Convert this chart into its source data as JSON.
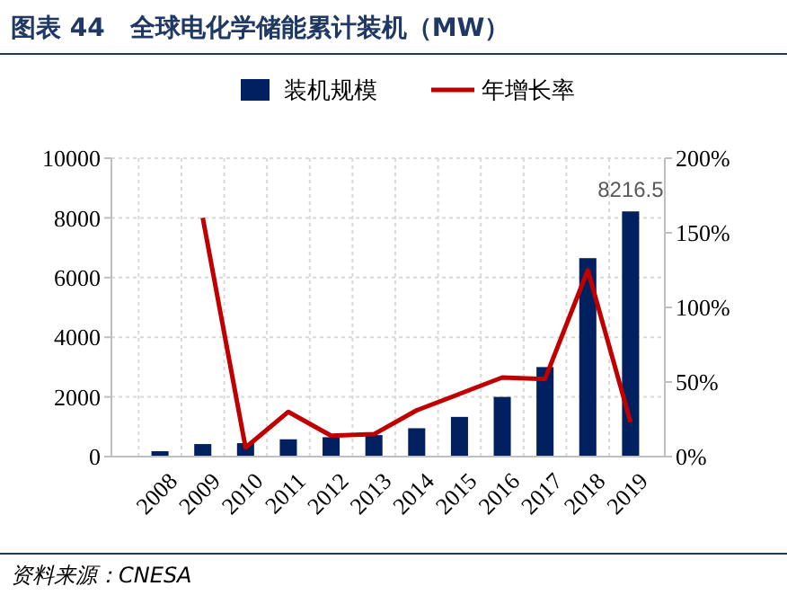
{
  "chart_data": {
    "type": "bar",
    "title": "图表 44　全球电化学储能累计装机（MW）",
    "categories": [
      "2008",
      "2009",
      "2010",
      "2011",
      "2012",
      "2013",
      "2014",
      "2015",
      "2016",
      "2017",
      "2018",
      "2019"
    ],
    "series": [
      {
        "name": "装机规模",
        "color": "#002060",
        "values": [
          180,
          420,
          450,
          580,
          650,
          720,
          950,
          1330,
          2000,
          3000,
          6650,
          8216.5
        ],
        "value_labels": [
          null,
          null,
          null,
          null,
          null,
          null,
          null,
          null,
          null,
          null,
          null,
          "8216.5"
        ]
      },
      {
        "name": "年增长率",
        "type": "line",
        "axis": "y2",
        "color": "#c00000",
        "values": [
          null,
          160,
          6,
          30,
          14,
          15,
          31,
          42,
          53,
          52,
          125,
          23
        ]
      }
    ],
    "ylim": [
      0,
      10000
    ],
    "yticks": [
      0,
      2000,
      4000,
      6000,
      8000,
      10000
    ],
    "y2lim": [
      0,
      200
    ],
    "y2ticks": [
      {
        "value": 0,
        "label": "0%"
      },
      {
        "value": 50,
        "label": "50%"
      },
      {
        "value": 100,
        "label": "100%"
      },
      {
        "value": 150,
        "label": "150%"
      },
      {
        "value": 200,
        "label": "200%"
      }
    ],
    "grid": true,
    "legend": "top",
    "annotations": [
      "资料来源：CNESA"
    ]
  }
}
